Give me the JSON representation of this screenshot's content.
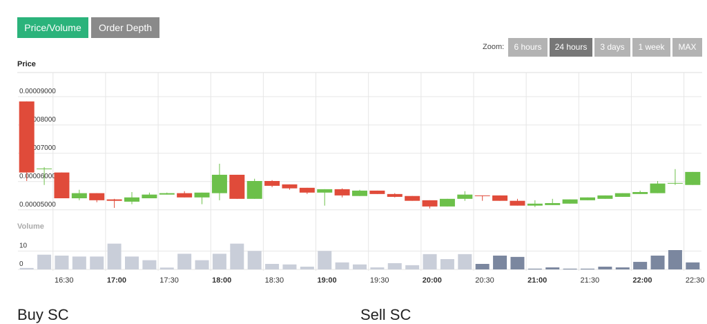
{
  "tabs": [
    "Price/Volume",
    "Order Depth"
  ],
  "zoom": {
    "label": "Zoom:",
    "options": [
      "6 hours",
      "24 hours",
      "3 days",
      "1 week",
      "MAX"
    ]
  },
  "chart_data": [
    {
      "type": "candlestick",
      "title": "Price",
      "x": [
        "16:15",
        "16:25",
        "16:35",
        "16:45",
        "16:55",
        "17:05",
        "17:15",
        "17:25",
        "17:35",
        "17:45",
        "17:55",
        "18:05",
        "18:15",
        "18:25",
        "18:35",
        "18:45",
        "18:55",
        "19:05",
        "19:15",
        "19:25",
        "19:35",
        "19:45",
        "19:55",
        "20:05",
        "20:15",
        "20:25",
        "20:35",
        "20:45",
        "20:55",
        "21:05",
        "21:15",
        "21:25",
        "21:35",
        "21:45",
        "21:55",
        "22:05",
        "22:15",
        "22:25",
        "22:35"
      ],
      "open": [
        8.83e-05,
        6.46e-05,
        6.32e-05,
        5.41e-05,
        5.59e-05,
        5.37e-05,
        5.29e-05,
        5.41e-05,
        5.54e-05,
        5.59e-05,
        5.44e-05,
        5.59e-05,
        6.24e-05,
        5.39e-05,
        6.02e-05,
        5.9e-05,
        5.78e-05,
        5.61e-05,
        5.73e-05,
        5.49e-05,
        5.68e-05,
        5.56e-05,
        5.49e-05,
        5.34e-05,
        5.12e-05,
        5.39e-05,
        5.51e-05,
        5.51e-05,
        5.32e-05,
        5.15e-05,
        5.17e-05,
        5.22e-05,
        5.34e-05,
        5.39e-05,
        5.46e-05,
        5.56e-05,
        5.59e-05,
        5.93e-05,
        5.88e-05
      ],
      "high": [
        8.83e-05,
        6.51e-05,
        6.32e-05,
        5.71e-05,
        5.59e-05,
        5.39e-05,
        5.63e-05,
        5.61e-05,
        5.61e-05,
        5.66e-05,
        5.61e-05,
        6.63e-05,
        6.24e-05,
        6.1e-05,
        6.05e-05,
        5.9e-05,
        5.78e-05,
        5.73e-05,
        5.76e-05,
        5.71e-05,
        5.68e-05,
        5.59e-05,
        5.49e-05,
        5.34e-05,
        5.39e-05,
        5.66e-05,
        5.51e-05,
        5.51e-05,
        5.39e-05,
        5.34e-05,
        5.39e-05,
        5.37e-05,
        5.44e-05,
        5.51e-05,
        5.59e-05,
        5.68e-05,
        6.02e-05,
        6.44e-05,
        6.34e-05
      ],
      "low": [
        6.02e-05,
        5.88e-05,
        5.41e-05,
        5.34e-05,
        5.27e-05,
        5.07e-05,
        5.2e-05,
        5.41e-05,
        5.54e-05,
        5.44e-05,
        5.2e-05,
        5.34e-05,
        5.39e-05,
        5.39e-05,
        5.8e-05,
        5.71e-05,
        5.56e-05,
        5.15e-05,
        5.44e-05,
        5.49e-05,
        5.56e-05,
        5.44e-05,
        5.32e-05,
        5.05e-05,
        5.12e-05,
        5.32e-05,
        5.32e-05,
        5.32e-05,
        5.15e-05,
        5.1e-05,
        5.17e-05,
        5.22e-05,
        5.34e-05,
        5.39e-05,
        5.46e-05,
        5.56e-05,
        5.59e-05,
        5.88e-05,
        5.88e-05
      ],
      "close": [
        6.32e-05,
        6.46e-05,
        5.41e-05,
        5.59e-05,
        5.34e-05,
        5.32e-05,
        5.44e-05,
        5.54e-05,
        5.59e-05,
        5.44e-05,
        5.61e-05,
        6.24e-05,
        5.39e-05,
        6.02e-05,
        5.85e-05,
        5.76e-05,
        5.61e-05,
        5.73e-05,
        5.51e-05,
        5.68e-05,
        5.56e-05,
        5.46e-05,
        5.32e-05,
        5.12e-05,
        5.39e-05,
        5.54e-05,
        5.49e-05,
        5.32e-05,
        5.15e-05,
        5.22e-05,
        5.24e-05,
        5.37e-05,
        5.44e-05,
        5.51e-05,
        5.59e-05,
        5.63e-05,
        5.93e-05,
        5.95e-05,
        6.34e-05
      ],
      "up_color": "#6cc04a",
      "down_color": "#e04b3a",
      "xlim": [
        "16:10",
        "22:40"
      ],
      "xticks": [
        "16:30",
        "17:00",
        "17:30",
        "18:00",
        "18:30",
        "19:00",
        "19:30",
        "20:00",
        "20:30",
        "21:00",
        "21:30",
        "22:00",
        "22:30"
      ],
      "ylim": [
        4.8e-05,
        9.85e-05
      ],
      "yticks": [
        {
          "value": 5e-05,
          "label": "0.00005000"
        },
        {
          "value": 6e-05,
          "label": "0.00006000"
        },
        {
          "value": 7e-05,
          "label": "0.00007000"
        },
        {
          "value": 8e-05,
          "label": "0.00008000"
        },
        {
          "value": 9e-05,
          "label": "0.00009000"
        }
      ],
      "grid": true
    },
    {
      "type": "bar",
      "title": "Volume",
      "x": [
        "16:15",
        "16:25",
        "16:35",
        "16:45",
        "16:55",
        "17:05",
        "17:15",
        "17:25",
        "17:35",
        "17:45",
        "17:55",
        "18:05",
        "18:15",
        "18:25",
        "18:35",
        "18:45",
        "18:55",
        "19:05",
        "19:15",
        "19:25",
        "19:35",
        "19:45",
        "19:55",
        "20:05",
        "20:15",
        "20:25",
        "20:35",
        "20:45",
        "20:55",
        "21:05",
        "21:15",
        "21:25",
        "21:35",
        "21:45",
        "21:55",
        "22:05",
        "22:15",
        "22:25",
        "22:35"
      ],
      "values": [
        0.8,
        8,
        7.5,
        7,
        7,
        14,
        7,
        5,
        1,
        8.5,
        5,
        8.5,
        14,
        10,
        3,
        2.7,
        1.5,
        10,
        3.8,
        2.7,
        1.1,
        3.4,
        2.3,
        8.3,
        5.6,
        8.3,
        3,
        7.5,
        6.8,
        0.4,
        1.1,
        0.4,
        0.4,
        1.5,
        1.1,
        4.1,
        7.5,
        10.5,
        3.8
      ],
      "colors": [
        "#c9ced9",
        "#c9ced9",
        "#c9ced9",
        "#c9ced9",
        "#c9ced9",
        "#c9ced9",
        "#c9ced9",
        "#c9ced9",
        "#c9ced9",
        "#c9ced9",
        "#c9ced9",
        "#c9ced9",
        "#c9ced9",
        "#c9ced9",
        "#c9ced9",
        "#c9ced9",
        "#c9ced9",
        "#c9ced9",
        "#c9ced9",
        "#c9ced9",
        "#c9ced9",
        "#c9ced9",
        "#c9ced9",
        "#c9ced9",
        "#c9ced9",
        "#c9ced9",
        "#7b879f",
        "#7b879f",
        "#7b879f",
        "#7b879f",
        "#7b879f",
        "#7b879f",
        "#7b879f",
        "#7b879f",
        "#7b879f",
        "#7b879f",
        "#7b879f",
        "#7b879f",
        "#7b879f"
      ],
      "xlim": [
        "16:10",
        "22:40"
      ],
      "ylim": [
        0,
        18
      ],
      "yticks": [
        0,
        10
      ],
      "grid": true
    }
  ],
  "sections": [
    "Buy SC",
    "Sell SC"
  ]
}
